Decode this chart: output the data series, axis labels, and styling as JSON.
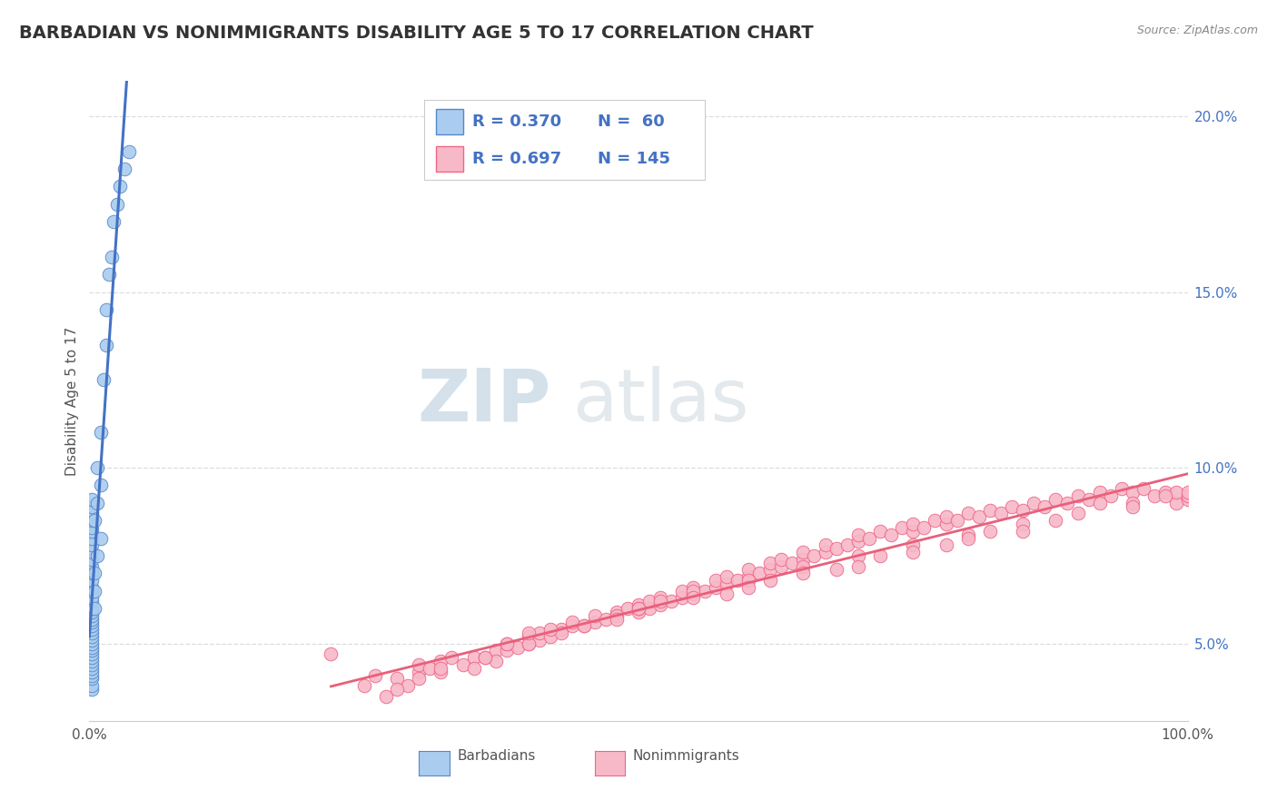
{
  "title": "BARBADIAN VS NONIMMIGRANTS DISABILITY AGE 5 TO 17 CORRELATION CHART",
  "source": "Source: ZipAtlas.com",
  "ylabel": "Disability Age 5 to 17",
  "xlim": [
    0.0,
    1.0
  ],
  "ylim": [
    0.028,
    0.21
  ],
  "ytick_positions": [
    0.05,
    0.1,
    0.15,
    0.2
  ],
  "ytick_labels": [
    "5.0%",
    "10.0%",
    "15.0%",
    "20.0%"
  ],
  "barbadian_color": "#aaccee",
  "nonimmigrant_color": "#f7b8c8",
  "barbadian_edge_color": "#5588cc",
  "nonimmigrant_edge_color": "#ee6688",
  "barbadian_line_color": "#4472c4",
  "nonimmigrant_line_color": "#e8607a",
  "legend_text_color": "#4472c4",
  "legend_label_color": "#333333",
  "watermark_color": "#c8d8e8",
  "background_color": "#ffffff",
  "grid_color": "#dddddd",
  "title_color": "#333333",
  "source_color": "#888888",
  "ylabel_color": "#555555",
  "xtick_color": "#555555",
  "title_fontsize": 14,
  "axis_label_fontsize": 11,
  "tick_fontsize": 11,
  "legend_fontsize": 13,
  "watermark_fontsize": 58,
  "scatter_size": 110,
  "barbadian_x": [
    0.002,
    0.002,
    0.002,
    0.002,
    0.002,
    0.002,
    0.002,
    0.002,
    0.002,
    0.002,
    0.002,
    0.002,
    0.002,
    0.002,
    0.002,
    0.002,
    0.002,
    0.002,
    0.002,
    0.002,
    0.002,
    0.002,
    0.002,
    0.002,
    0.002,
    0.002,
    0.002,
    0.002,
    0.002,
    0.002,
    0.002,
    0.002,
    0.002,
    0.002,
    0.002,
    0.002,
    0.002,
    0.002,
    0.002,
    0.002,
    0.005,
    0.005,
    0.005,
    0.005,
    0.007,
    0.007,
    0.007,
    0.01,
    0.01,
    0.01,
    0.013,
    0.015,
    0.015,
    0.018,
    0.02,
    0.022,
    0.025,
    0.028,
    0.032,
    0.036
  ],
  "barbadian_y": [
    0.037,
    0.038,
    0.04,
    0.041,
    0.042,
    0.043,
    0.044,
    0.045,
    0.046,
    0.047,
    0.048,
    0.049,
    0.05,
    0.051,
    0.052,
    0.053,
    0.054,
    0.055,
    0.056,
    0.057,
    0.058,
    0.059,
    0.06,
    0.062,
    0.063,
    0.065,
    0.066,
    0.068,
    0.07,
    0.072,
    0.074,
    0.076,
    0.078,
    0.08,
    0.082,
    0.083,
    0.085,
    0.087,
    0.089,
    0.091,
    0.06,
    0.065,
    0.07,
    0.085,
    0.075,
    0.09,
    0.1,
    0.08,
    0.095,
    0.11,
    0.125,
    0.135,
    0.145,
    0.155,
    0.16,
    0.17,
    0.175,
    0.18,
    0.185,
    0.19
  ],
  "nonimmigrant_x": [
    0.22,
    0.25,
    0.26,
    0.27,
    0.28,
    0.29,
    0.3,
    0.3,
    0.31,
    0.32,
    0.32,
    0.33,
    0.34,
    0.35,
    0.36,
    0.37,
    0.37,
    0.38,
    0.38,
    0.39,
    0.4,
    0.4,
    0.41,
    0.41,
    0.42,
    0.43,
    0.43,
    0.44,
    0.44,
    0.45,
    0.46,
    0.46,
    0.47,
    0.48,
    0.48,
    0.49,
    0.5,
    0.5,
    0.51,
    0.51,
    0.52,
    0.52,
    0.53,
    0.54,
    0.54,
    0.55,
    0.55,
    0.56,
    0.57,
    0.57,
    0.58,
    0.58,
    0.59,
    0.6,
    0.6,
    0.61,
    0.62,
    0.62,
    0.63,
    0.63,
    0.64,
    0.65,
    0.65,
    0.66,
    0.67,
    0.67,
    0.68,
    0.69,
    0.7,
    0.7,
    0.71,
    0.72,
    0.73,
    0.74,
    0.75,
    0.75,
    0.76,
    0.77,
    0.78,
    0.78,
    0.79,
    0.8,
    0.81,
    0.82,
    0.83,
    0.84,
    0.85,
    0.86,
    0.87,
    0.88,
    0.89,
    0.9,
    0.91,
    0.92,
    0.93,
    0.94,
    0.95,
    0.96,
    0.97,
    0.98,
    0.99,
    0.99,
    1.0,
    1.0,
    1.0,
    0.36,
    0.4,
    0.45,
    0.5,
    0.55,
    0.6,
    0.65,
    0.7,
    0.75,
    0.8,
    0.85,
    0.9,
    0.95,
    0.3,
    0.35,
    0.55,
    0.65,
    0.75,
    0.85,
    0.95,
    0.4,
    0.5,
    0.6,
    0.7,
    0.8,
    0.38,
    0.48,
    0.58,
    0.68,
    0.78,
    0.88,
    0.98,
    0.28,
    0.32,
    0.42,
    0.52,
    0.62,
    0.72,
    0.82,
    0.92
  ],
  "nonimmigrant_y": [
    0.047,
    0.038,
    0.041,
    0.035,
    0.04,
    0.038,
    0.042,
    0.044,
    0.043,
    0.045,
    0.042,
    0.046,
    0.044,
    0.046,
    0.046,
    0.048,
    0.045,
    0.048,
    0.05,
    0.049,
    0.05,
    0.052,
    0.051,
    0.053,
    0.052,
    0.054,
    0.053,
    0.055,
    0.056,
    0.055,
    0.056,
    0.058,
    0.057,
    0.059,
    0.058,
    0.06,
    0.059,
    0.061,
    0.06,
    0.062,
    0.061,
    0.063,
    0.062,
    0.063,
    0.065,
    0.064,
    0.066,
    0.065,
    0.066,
    0.068,
    0.067,
    0.069,
    0.068,
    0.069,
    0.071,
    0.07,
    0.071,
    0.073,
    0.072,
    0.074,
    0.073,
    0.074,
    0.076,
    0.075,
    0.076,
    0.078,
    0.077,
    0.078,
    0.079,
    0.081,
    0.08,
    0.082,
    0.081,
    0.083,
    0.082,
    0.084,
    0.083,
    0.085,
    0.084,
    0.086,
    0.085,
    0.087,
    0.086,
    0.088,
    0.087,
    0.089,
    0.088,
    0.09,
    0.089,
    0.091,
    0.09,
    0.092,
    0.091,
    0.093,
    0.092,
    0.094,
    0.093,
    0.094,
    0.092,
    0.093,
    0.09,
    0.093,
    0.091,
    0.092,
    0.093,
    0.046,
    0.05,
    0.055,
    0.06,
    0.065,
    0.068,
    0.072,
    0.075,
    0.078,
    0.081,
    0.084,
    0.087,
    0.09,
    0.04,
    0.043,
    0.063,
    0.07,
    0.076,
    0.082,
    0.089,
    0.053,
    0.06,
    0.066,
    0.072,
    0.08,
    0.05,
    0.057,
    0.064,
    0.071,
    0.078,
    0.085,
    0.092,
    0.037,
    0.043,
    0.054,
    0.062,
    0.068,
    0.075,
    0.082,
    0.09
  ],
  "legend_entries": [
    {
      "label": "R = 0.370   N =  60",
      "color": "#aaccee",
      "edge": "#5588cc"
    },
    {
      "label": "R = 0.697   N = 145",
      "color": "#f7b8c8",
      "edge": "#ee6688"
    }
  ]
}
